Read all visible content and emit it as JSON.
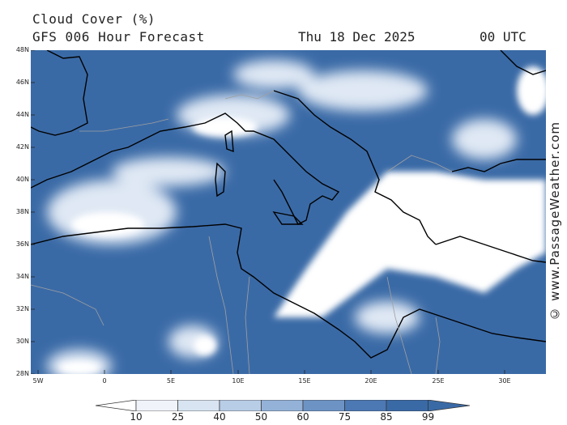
{
  "header": {
    "title": "Cloud Cover (%)",
    "subtitle": "GFS 006 Hour Forecast",
    "date": "Thu 18 Dec 2025",
    "time": "00 UTC"
  },
  "map": {
    "region": "Mediterranean",
    "background_color": "#3a6aa6",
    "land_border_color": "#000000",
    "country_border_color": "#a0a0a0",
    "lat_labels": [
      "48N",
      "46N",
      "44N",
      "42N",
      "40N",
      "38N",
      "36N",
      "34N",
      "32N",
      "30N",
      "28N"
    ],
    "lon_labels": [
      "5W",
      "0",
      "5E",
      "10E",
      "15E",
      "20E",
      "25E",
      "30E"
    ]
  },
  "legend": {
    "values": [
      "10",
      "25",
      "40",
      "50",
      "60",
      "75",
      "85",
      "99"
    ],
    "colors": [
      "#ffffff",
      "#f0f4fa",
      "#d8e4f2",
      "#b8cde6",
      "#94b2d8",
      "#6d93c5",
      "#4c78b4",
      "#3a6aa6"
    ]
  },
  "credit": "© www.PassageWeather.com"
}
